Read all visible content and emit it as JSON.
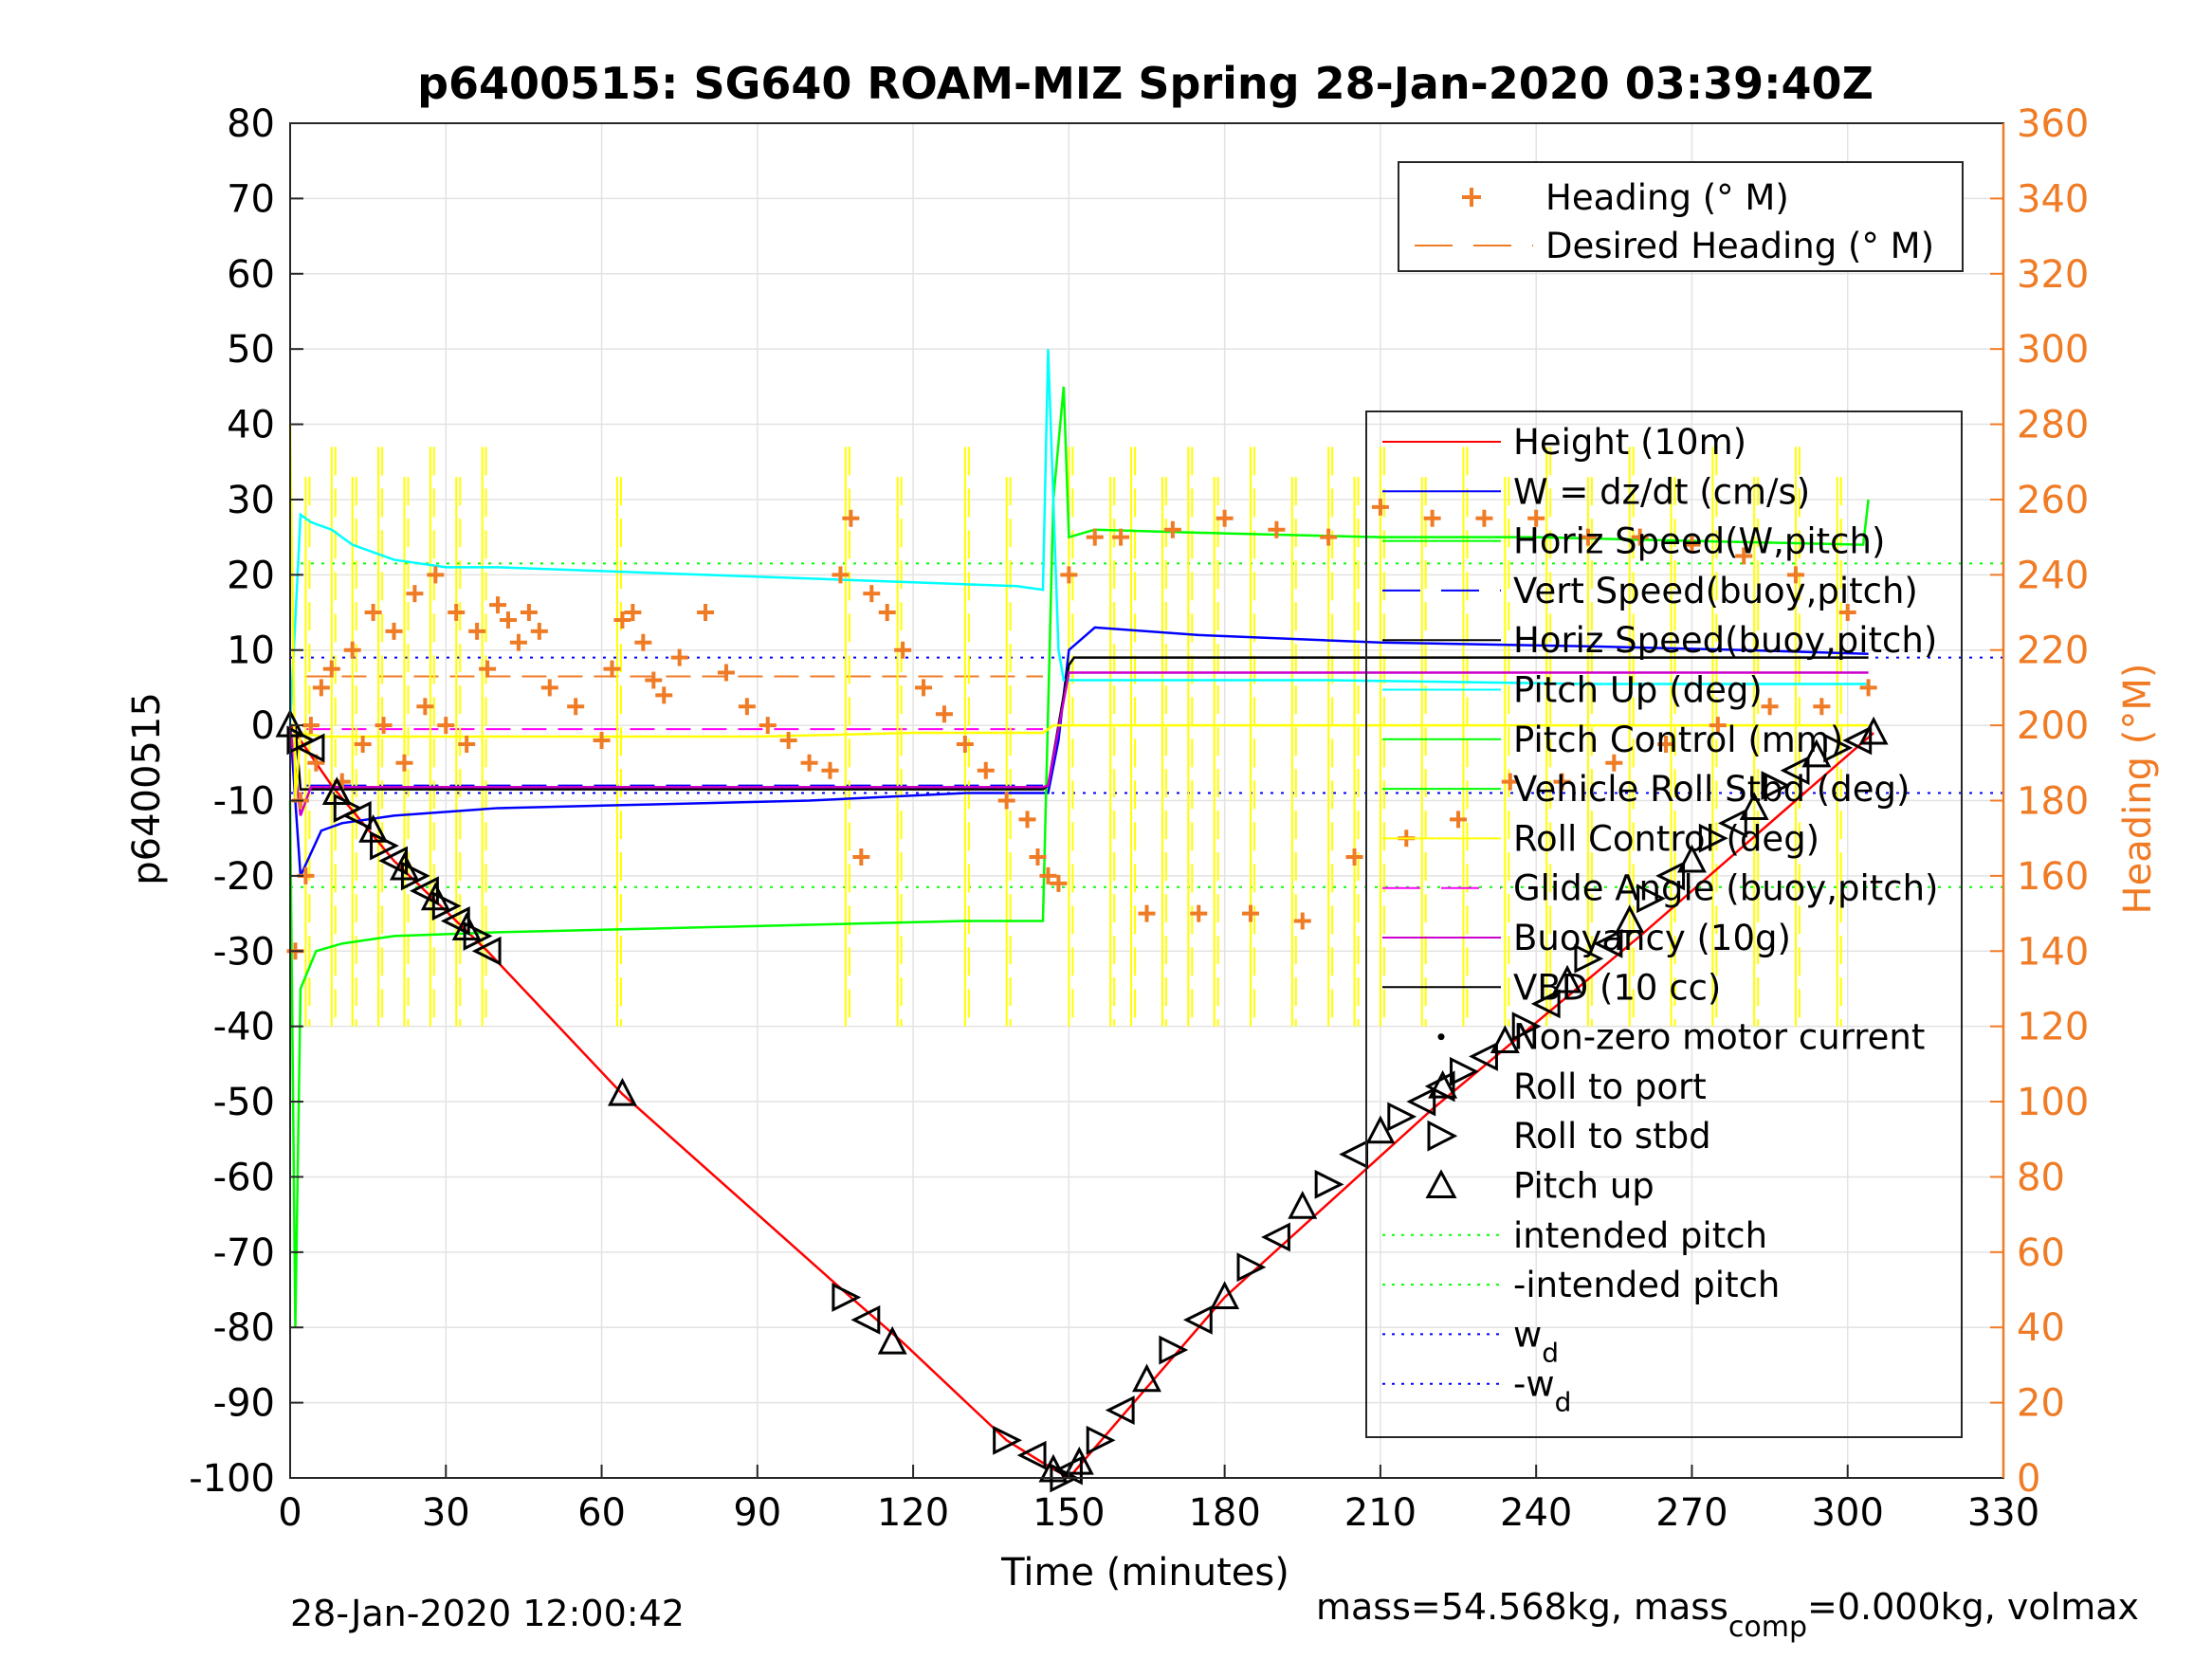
{
  "chart_data": {
    "type": "line",
    "title": "p6400515: SG640 ROAM-MIZ Spring 28-Jan-2020 03:39:40Z",
    "xlabel": "Time (minutes)",
    "ylabel": "p6400515",
    "ylabel_right": "Heading (°M)",
    "xlim": [
      0,
      330
    ],
    "ylim": [
      -100,
      80
    ],
    "ylim_right": [
      0,
      360
    ],
    "x_ticks": [
      "0",
      "30",
      "60",
      "90",
      "120",
      "150",
      "180",
      "210",
      "240",
      "270",
      "300",
      "330"
    ],
    "y_ticks": [
      "-100",
      "-90",
      "-80",
      "-70",
      "-60",
      "-50",
      "-40",
      "-30",
      "-20",
      "-10",
      "0",
      "10",
      "20",
      "30",
      "40",
      "50",
      "60",
      "70",
      "80"
    ],
    "y_right_ticks": [
      "0",
      "20",
      "40",
      "60",
      "80",
      "100",
      "120",
      "140",
      "160",
      "180",
      "200",
      "220",
      "240",
      "260",
      "280",
      "300",
      "320",
      "340",
      "360"
    ],
    "grid": true,
    "footer_left": "28-Jan-2020 12:00:42",
    "footer_right": "mass=54.568kg, mass",
    "footer_right_sub": "comp",
    "footer_right_tail": "=0.000kg, volmax",
    "legend_heading": {
      "placement": "top-right",
      "entries": [
        {
          "label": "Heading (° M)",
          "color": "#f07b25",
          "style": "plus"
        },
        {
          "label": "Desired Heading (° M)",
          "color": "#f07b25",
          "style": "dash"
        }
      ]
    },
    "legend_main": {
      "placement": "right",
      "entries": [
        {
          "label": "Height (10m)",
          "color": "#ff0000",
          "style": "solid"
        },
        {
          "label": "W = dz/dt (cm/s)",
          "color": "#0000ff",
          "style": "solid"
        },
        {
          "label": "Horiz Speed(W,pitch)",
          "color": "#00ff00",
          "style": "solid"
        },
        {
          "label": "Vert Speed(buoy,pitch)",
          "color": "#0000ff",
          "style": "dash"
        },
        {
          "label": "Horiz Speed(buoy,pitch)",
          "color": "#000000",
          "style": "solid"
        },
        {
          "label": "Pitch Up (deg)",
          "color": "#00ffff",
          "style": "solid"
        },
        {
          "label": "Pitch Control (mm)",
          "color": "#00ff00",
          "style": "solid"
        },
        {
          "label": "Vehicle Roll Stbd (deg)",
          "color": "#00ff00",
          "style": "solid"
        },
        {
          "label": "Roll Control (deg)",
          "color": "#ffff00",
          "style": "solid"
        },
        {
          "label": "Glide Angle (buoy,pitch)",
          "color": "#ff00ff",
          "style": "dash"
        },
        {
          "label": "Buoyancy (10g)",
          "color": "#cc00cc",
          "style": "solid"
        },
        {
          "label": "VBD (10 cc)",
          "color": "#000000",
          "style": "solid"
        },
        {
          "label": "Non-zero motor current",
          "color": "#000000",
          "style": "dot"
        },
        {
          "label": "Roll to port",
          "color": "#000000",
          "style": "tri-left"
        },
        {
          "label": "Roll to stbd",
          "color": "#000000",
          "style": "tri-right"
        },
        {
          "label": "Pitch up",
          "color": "#000000",
          "style": "tri-up"
        },
        {
          "label": "intended pitch",
          "color": "#00ff00",
          "style": "dotted"
        },
        {
          "label": "-intended pitch",
          "color": "#00ff00",
          "style": "dotted"
        },
        {
          "label": "w",
          "sub": "d",
          "color": "#0000ff",
          "style": "dotted"
        },
        {
          "label": "-w",
          "sub": "d",
          "color": "#0000ff",
          "style": "dotted"
        }
      ]
    },
    "series": [
      {
        "name": "Height (10m)",
        "color": "#ff0000",
        "style": "solid",
        "x": [
          0,
          8,
          20,
          38,
          64,
          108,
          118,
          138,
          145,
          150,
          155,
          160,
          180,
          220,
          260,
          290,
          305
        ],
        "y": [
          0,
          -8,
          -18,
          -30,
          -49,
          -76,
          -82,
          -95,
          -98,
          -100,
          -96,
          -92,
          -76,
          -51,
          -28,
          -10,
          -1
        ]
      },
      {
        "name": "W = dz/dt (cm/s)",
        "color": "#0000ff",
        "style": "solid",
        "x": [
          0,
          2,
          4,
          6,
          10,
          20,
          40,
          70,
          100,
          130,
          146,
          148,
          150,
          155,
          175,
          210,
          250,
          280,
          304
        ],
        "y": [
          0,
          -20,
          -17,
          -14,
          -13,
          -12,
          -11,
          -10.5,
          -10,
          -9,
          -9,
          -2,
          10,
          13,
          12,
          11,
          10.5,
          10,
          9.5
        ]
      },
      {
        "name": "Horiz Speed(W,pitch)",
        "color": "#00ff00",
        "style": "solid",
        "x": [
          0,
          1,
          2,
          5,
          10,
          20,
          40,
          70,
          100,
          130,
          145,
          147,
          149,
          150,
          155,
          180,
          210,
          240,
          270,
          303,
          304
        ],
        "y": [
          -10,
          -80,
          -35,
          -30,
          -29,
          -28,
          -27.5,
          -27,
          -26.5,
          -26,
          -26,
          30,
          45,
          25,
          26,
          25.5,
          25,
          25,
          24.5,
          24,
          30
        ]
      },
      {
        "name": "Pitch Up (deg)",
        "color": "#00ffff",
        "style": "solid",
        "x": [
          0,
          2,
          4,
          8,
          12,
          20,
          30,
          40,
          60,
          80,
          100,
          120,
          140,
          145,
          146,
          148,
          149,
          150,
          160,
          200,
          250,
          304
        ],
        "y": [
          0,
          28,
          27,
          26,
          24,
          22,
          21,
          21,
          20.5,
          20,
          19.5,
          19,
          18.5,
          18,
          50,
          10,
          6,
          6,
          6,
          6,
          5.5,
          5.5
        ]
      },
      {
        "name": "VBD (10 cc)",
        "color": "#000000",
        "style": "solid",
        "x": [
          0,
          1,
          2,
          145,
          146,
          150,
          151,
          304
        ],
        "y": [
          0,
          0,
          -8.5,
          -8.5,
          -8,
          8,
          9,
          9
        ]
      },
      {
        "name": "Buoyancy (10g)",
        "color": "#cc00cc",
        "style": "solid",
        "x": [
          0,
          2,
          4,
          145,
          146,
          150,
          304
        ],
        "y": [
          0,
          -12,
          -8.2,
          -8.2,
          -8,
          7,
          7
        ]
      },
      {
        "name": "Pitch Control (mm)",
        "color": "#ffff00",
        "style": "solid",
        "x": [
          0,
          1,
          2,
          6,
          30,
          60,
          90,
          120,
          145,
          147,
          150,
          152,
          200,
          250,
          304
        ],
        "y": [
          40,
          -10,
          -1,
          -1.5,
          -1.5,
          -1.5,
          -1.5,
          -1,
          -1,
          0,
          0,
          0,
          0,
          0,
          0
        ]
      }
    ],
    "reference_lines": [
      {
        "name": "intended pitch",
        "y": 21.5,
        "color": "#00ff00"
      },
      {
        "name": "-intended pitch",
        "y": -21.5,
        "color": "#00ff00"
      },
      {
        "name": "w_d",
        "y": 9,
        "color": "#0000ff"
      },
      {
        "name": "-w_d",
        "y": -9,
        "color": "#0000ff"
      },
      {
        "name": "Glide Angle (buoy,pitch)",
        "y": -0.5,
        "x_range": [
          3,
          145
        ],
        "color": "#ff00ff"
      },
      {
        "name": "Vert Speed(buoy,pitch)",
        "y": -8,
        "x_range": [
          3,
          145
        ],
        "color": "#0000ff"
      },
      {
        "name": "Desired Heading (° M)",
        "y_right": 213,
        "x_range": [
          3,
          145
        ],
        "color": "#f07b25"
      }
    ],
    "roll_control_spikes_x": [
      3,
      8,
      12,
      17,
      22,
      27,
      32,
      37,
      63,
      107,
      117,
      130,
      138,
      150,
      158,
      162,
      168,
      173,
      178,
      185,
      193,
      200,
      205,
      210,
      218,
      226,
      234,
      242,
      250,
      258,
      266,
      274,
      282,
      290,
      298
    ],
    "heading_points": {
      "x": [
        1,
        2,
        3,
        4,
        5,
        6,
        8,
        10,
        12,
        14,
        16,
        18,
        20,
        22,
        24,
        26,
        28,
        30,
        32,
        34,
        36,
        38,
        40,
        42,
        44,
        46,
        48,
        50,
        55,
        60,
        62,
        64,
        66,
        68,
        70,
        72,
        75,
        80,
        84,
        88,
        92,
        96,
        100,
        104,
        106,
        108,
        110,
        112,
        115,
        118,
        122,
        126,
        130,
        134,
        138,
        142,
        144,
        146,
        148,
        150,
        155,
        160,
        165,
        170,
        175,
        180,
        185,
        190,
        195,
        200,
        205,
        210,
        215,
        220,
        225,
        230,
        235,
        240,
        245,
        250,
        255,
        260,
        265,
        270,
        275,
        280,
        285,
        290,
        295,
        300,
        304
      ],
      "y": [
        140,
        180,
        160,
        200,
        190,
        210,
        215,
        185,
        220,
        195,
        230,
        200,
        225,
        190,
        235,
        205,
        240,
        200,
        230,
        195,
        225,
        215,
        232,
        228,
        222,
        230,
        225,
        210,
        205,
        196,
        215,
        228,
        230,
        222,
        212,
        208,
        218,
        230,
        214,
        205,
        200,
        196,
        190,
        188,
        240,
        255,
        165,
        235,
        230,
        220,
        210,
        203,
        195,
        188,
        180,
        175,
        165,
        160,
        158,
        240,
        250,
        250,
        150,
        252,
        150,
        255,
        150,
        252,
        148,
        250,
        165,
        258,
        170,
        255,
        175,
        255,
        185,
        255,
        185,
        250,
        190,
        250,
        195,
        248,
        200,
        245,
        205,
        240,
        205,
        230,
        210
      ]
    },
    "glider_markers": {
      "x": [
        0,
        2,
        4,
        9,
        11,
        13,
        16,
        18,
        20,
        22,
        24,
        26,
        28,
        30,
        32,
        34,
        36,
        38,
        64,
        107,
        111,
        116,
        138,
        143,
        147,
        149,
        150,
        152,
        156,
        160,
        165,
        170,
        175,
        180,
        185,
        190,
        195,
        200,
        205,
        210,
        214,
        218,
        222,
        226,
        230,
        234,
        238,
        242,
        246,
        250,
        254,
        258,
        262,
        266,
        270,
        274,
        278,
        282,
        286,
        290,
        294,
        298,
        302,
        305
      ],
      "y": [
        0,
        -2,
        -3,
        -9,
        -11,
        -12,
        -14,
        -16,
        -18,
        -19,
        -20,
        -22,
        -23,
        -24,
        -26,
        -27,
        -28,
        -30,
        -49,
        -76,
        -79,
        -82,
        -95,
        -97,
        -99,
        -100,
        -99,
        -98,
        -95,
        -91,
        -87,
        -83,
        -79,
        -76,
        -72,
        -68,
        -64,
        -61,
        -57,
        -54,
        -52,
        -50,
        -48,
        -46,
        -44,
        -42,
        -40,
        -37,
        -34,
        -31,
        -29,
        -26,
        -23,
        -20,
        -18,
        -15,
        -13,
        -11,
        -8,
        -6,
        -4,
        -3,
        -2,
        -1
      ]
    }
  }
}
